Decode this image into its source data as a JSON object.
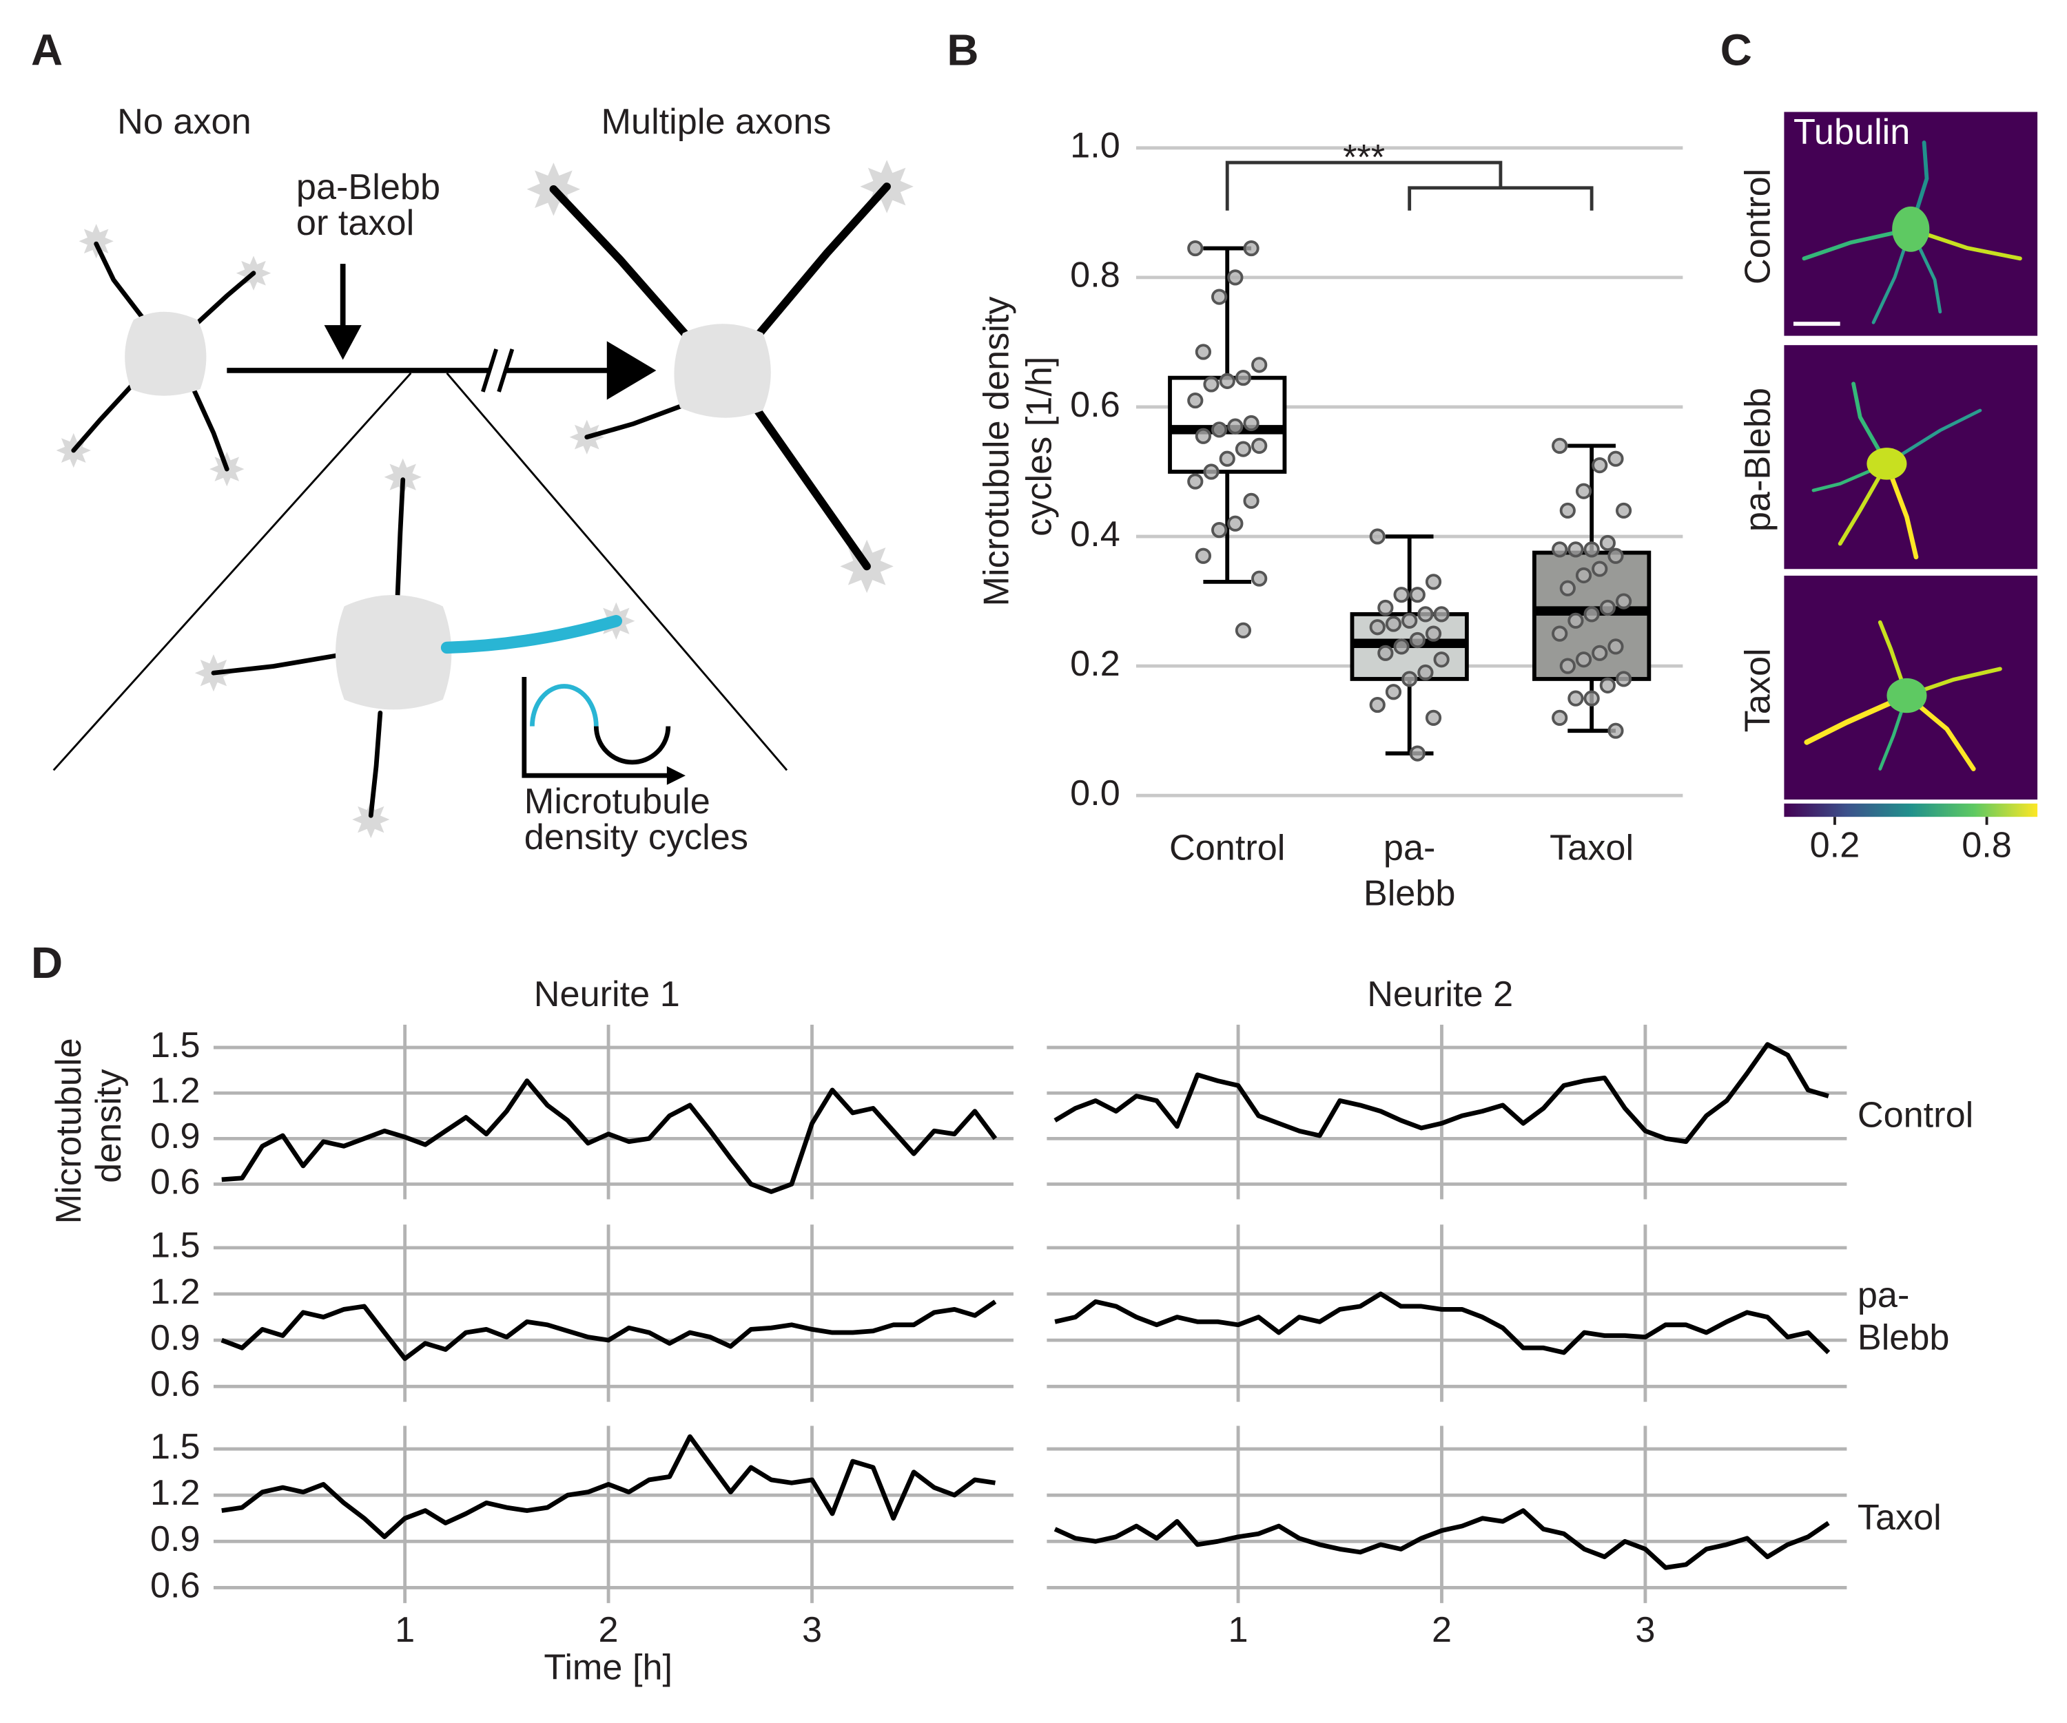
{
  "panels": [
    "A",
    "B",
    "C",
    "D"
  ],
  "diagram": {
    "left_label": "No axon",
    "right_label": "Multiple axons",
    "treatment": "pa-Blebb or taxol",
    "inset_label": "Microtubule density cycles"
  },
  "images": {
    "title": "Tubulin",
    "rows": [
      "Control",
      "pa-Blebb",
      "Taxol"
    ],
    "colorbar": {
      "clim": [
        0,
        1
      ],
      "ticks": [
        0.2,
        0.8
      ]
    }
  },
  "chart_data": [
    {
      "type": "box",
      "ylabel": "Microtubule density cycles [1/h]",
      "categories": [
        "Control",
        "pa-Blebb",
        "Taxol"
      ],
      "boxes": [
        {
          "whislo": 0.33,
          "q1": 0.5,
          "med": 0.565,
          "q3": 0.645,
          "whishi": 0.845,
          "color": "#ffffff",
          "points": [
            0.845,
            0.845,
            0.8,
            0.77,
            0.685,
            0.665,
            0.645,
            0.64,
            0.635,
            0.61,
            0.575,
            0.57,
            0.565,
            0.555,
            0.54,
            0.535,
            0.52,
            0.5,
            0.485,
            0.455,
            0.42,
            0.41,
            0.37,
            0.335,
            0.255
          ]
        },
        {
          "whislo": 0.065,
          "q1": 0.18,
          "med": 0.235,
          "q3": 0.28,
          "whishi": 0.4,
          "color": "#cdd1cf",
          "points": [
            0.4,
            0.33,
            0.31,
            0.31,
            0.29,
            0.28,
            0.28,
            0.27,
            0.265,
            0.26,
            0.25,
            0.24,
            0.23,
            0.22,
            0.21,
            0.19,
            0.18,
            0.16,
            0.14,
            0.12,
            0.065
          ]
        },
        {
          "whislo": 0.1,
          "q1": 0.18,
          "med": 0.285,
          "q3": 0.375,
          "whishi": 0.54,
          "color": "#999a97",
          "points": [
            0.54,
            0.52,
            0.51,
            0.47,
            0.44,
            0.44,
            0.39,
            0.38,
            0.38,
            0.38,
            0.37,
            0.35,
            0.34,
            0.32,
            0.3,
            0.29,
            0.28,
            0.27,
            0.25,
            0.23,
            0.22,
            0.21,
            0.2,
            0.18,
            0.17,
            0.15,
            0.15,
            0.12,
            0.1
          ]
        }
      ],
      "ylim": [
        -0.01,
        1.05
      ],
      "yticks": [
        {
          "value": 0,
          "label": "0.0"
        },
        0.2,
        0.4,
        0.6,
        0.8,
        {
          "value": 1,
          "label": "1.0"
        }
      ],
      "grid": true,
      "annotation": "***"
    },
    {
      "type": "line",
      "title": "Neurite 1",
      "ylabel": "Microtubule density",
      "color": "#000000",
      "x": [
        0.1,
        0.2,
        0.3,
        0.4,
        0.5,
        0.6,
        0.7,
        0.8,
        0.9,
        1,
        1.1,
        1.2,
        1.3,
        1.4,
        1.5,
        1.6,
        1.7,
        1.8,
        1.9,
        2,
        2.1,
        2.2,
        2.3,
        2.4,
        2.5,
        2.6,
        2.7,
        2.8,
        2.9,
        3,
        3.1,
        3.2,
        3.3,
        3.4,
        3.5,
        3.6,
        3.7,
        3.8,
        3.9
      ],
      "values": [
        0.63,
        0.64,
        0.85,
        0.92,
        0.72,
        0.88,
        0.85,
        0.9,
        0.95,
        0.91,
        0.86,
        0.95,
        1.04,
        0.93,
        1.08,
        1.28,
        1.12,
        1.02,
        0.87,
        0.93,
        0.88,
        0.9,
        1.05,
        1.12,
        0.95,
        0.77,
        0.6,
        0.55,
        0.6,
        1.0,
        1.22,
        1.07,
        1.1,
        0.95,
        0.8,
        0.95,
        0.93,
        1.08,
        0.9
      ],
      "xlim": [
        0.06,
        3.99
      ],
      "ylim": [
        0.5,
        1.65
      ],
      "xticks": [
        1,
        2,
        3
      ],
      "yticks": [
        0.6,
        0.9,
        1.2,
        1.5
      ],
      "grid": true,
      "xtick_labels": false,
      "ytick_labels": true
    },
    {
      "type": "line",
      "title": "Neurite 2",
      "row_label": "Control",
      "color": "#000000",
      "x": [
        0.1,
        0.2,
        0.3,
        0.4,
        0.5,
        0.6,
        0.7,
        0.8,
        0.9,
        1,
        1.1,
        1.2,
        1.3,
        1.4,
        1.5,
        1.6,
        1.7,
        1.8,
        1.9,
        2,
        2.1,
        2.2,
        2.3,
        2.4,
        2.5,
        2.6,
        2.7,
        2.8,
        2.9,
        3,
        3.1,
        3.2,
        3.3,
        3.4,
        3.5,
        3.6,
        3.7,
        3.8,
        3.9
      ],
      "values": [
        1.02,
        1.1,
        1.15,
        1.08,
        1.18,
        1.15,
        0.98,
        1.32,
        1.28,
        1.25,
        1.05,
        1.0,
        0.95,
        0.92,
        1.15,
        1.12,
        1.08,
        1.02,
        0.97,
        1.0,
        1.05,
        1.08,
        1.12,
        1.0,
        1.1,
        1.25,
        1.28,
        1.3,
        1.1,
        0.95,
        0.9,
        0.88,
        1.05,
        1.15,
        1.33,
        1.52,
        1.45,
        1.22,
        1.18
      ],
      "xlim": [
        0.06,
        3.99
      ],
      "ylim": [
        0.5,
        1.65
      ],
      "xticks": [
        1,
        2,
        3
      ],
      "yticks": [
        0.6,
        0.9,
        1.2,
        1.5
      ],
      "grid": true,
      "xtick_labels": false,
      "ytick_labels": false
    },
    {
      "type": "line",
      "color": "#000000",
      "x": [
        0.1,
        0.2,
        0.3,
        0.4,
        0.5,
        0.6,
        0.7,
        0.8,
        0.9,
        1,
        1.1,
        1.2,
        1.3,
        1.4,
        1.5,
        1.6,
        1.7,
        1.8,
        1.9,
        2,
        2.1,
        2.2,
        2.3,
        2.4,
        2.5,
        2.6,
        2.7,
        2.8,
        2.9,
        3,
        3.1,
        3.2,
        3.3,
        3.4,
        3.5,
        3.6,
        3.7,
        3.8,
        3.9
      ],
      "values": [
        0.9,
        0.85,
        0.97,
        0.93,
        1.08,
        1.05,
        1.1,
        1.12,
        0.95,
        0.78,
        0.88,
        0.84,
        0.95,
        0.97,
        0.92,
        1.02,
        1.0,
        0.96,
        0.92,
        0.9,
        0.98,
        0.95,
        0.88,
        0.95,
        0.92,
        0.86,
        0.97,
        0.98,
        1.0,
        0.97,
        0.95,
        0.95,
        0.96,
        1.0,
        1.0,
        1.08,
        1.1,
        1.06,
        1.15
      ],
      "xlim": [
        0.06,
        3.99
      ],
      "ylim": [
        0.5,
        1.65
      ],
      "xticks": [
        1,
        2,
        3
      ],
      "yticks": [
        0.6,
        0.9,
        1.2,
        1.5
      ],
      "grid": true,
      "xtick_labels": false,
      "ytick_labels": true
    },
    {
      "type": "line",
      "row_label": "pa-Blebb",
      "color": "#000000",
      "x": [
        0.1,
        0.2,
        0.3,
        0.4,
        0.5,
        0.6,
        0.7,
        0.8,
        0.9,
        1,
        1.1,
        1.2,
        1.3,
        1.4,
        1.5,
        1.6,
        1.7,
        1.8,
        1.9,
        2,
        2.1,
        2.2,
        2.3,
        2.4,
        2.5,
        2.6,
        2.7,
        2.8,
        2.9,
        3,
        3.1,
        3.2,
        3.3,
        3.4,
        3.5,
        3.6,
        3.7,
        3.8,
        3.9
      ],
      "values": [
        1.02,
        1.05,
        1.15,
        1.12,
        1.05,
        1.0,
        1.05,
        1.02,
        1.02,
        1.0,
        1.05,
        0.95,
        1.05,
        1.02,
        1.1,
        1.12,
        1.2,
        1.12,
        1.12,
        1.1,
        1.1,
        1.05,
        0.98,
        0.85,
        0.85,
        0.82,
        0.95,
        0.93,
        0.93,
        0.92,
        1.0,
        1.0,
        0.95,
        1.02,
        1.08,
        1.05,
        0.92,
        0.95,
        0.82
      ],
      "xlim": [
        0.06,
        3.99
      ],
      "ylim": [
        0.5,
        1.65
      ],
      "xticks": [
        1,
        2,
        3
      ],
      "yticks": [
        0.6,
        0.9,
        1.2,
        1.5
      ],
      "grid": true,
      "xtick_labels": false,
      "ytick_labels": false
    },
    {
      "type": "line",
      "xlabel": "Time [h]",
      "color": "#000000",
      "x": [
        0.1,
        0.2,
        0.3,
        0.4,
        0.5,
        0.6,
        0.7,
        0.8,
        0.9,
        1,
        1.1,
        1.2,
        1.3,
        1.4,
        1.5,
        1.6,
        1.7,
        1.8,
        1.9,
        2,
        2.1,
        2.2,
        2.3,
        2.4,
        2.5,
        2.6,
        2.7,
        2.8,
        2.9,
        3,
        3.1,
        3.2,
        3.3,
        3.4,
        3.5,
        3.6,
        3.7,
        3.8,
        3.9
      ],
      "values": [
        1.1,
        1.12,
        1.22,
        1.25,
        1.22,
        1.27,
        1.15,
        1.05,
        0.93,
        1.05,
        1.1,
        1.02,
        1.08,
        1.15,
        1.12,
        1.1,
        1.12,
        1.2,
        1.22,
        1.27,
        1.22,
        1.3,
        1.32,
        1.58,
        1.4,
        1.22,
        1.38,
        1.3,
        1.28,
        1.3,
        1.08,
        1.42,
        1.38,
        1.05,
        1.35,
        1.25,
        1.2,
        1.3,
        1.28
      ],
      "xlim": [
        0.06,
        3.99
      ],
      "ylim": [
        0.5,
        1.65
      ],
      "xticks": [
        1,
        2,
        3
      ],
      "yticks": [
        0.6,
        0.9,
        1.2,
        1.5
      ],
      "grid": true,
      "xtick_labels": true,
      "ytick_labels": true
    },
    {
      "type": "line",
      "row_label": "Taxol",
      "color": "#000000",
      "x": [
        0.1,
        0.2,
        0.3,
        0.4,
        0.5,
        0.6,
        0.7,
        0.8,
        0.9,
        1,
        1.1,
        1.2,
        1.3,
        1.4,
        1.5,
        1.6,
        1.7,
        1.8,
        1.9,
        2,
        2.1,
        2.2,
        2.3,
        2.4,
        2.5,
        2.6,
        2.7,
        2.8,
        2.9,
        3,
        3.1,
        3.2,
        3.3,
        3.4,
        3.5,
        3.6,
        3.7,
        3.8,
        3.9
      ],
      "values": [
        0.98,
        0.92,
        0.9,
        0.93,
        1.0,
        0.92,
        1.03,
        0.88,
        0.9,
        0.93,
        0.95,
        1.0,
        0.92,
        0.88,
        0.85,
        0.83,
        0.88,
        0.85,
        0.92,
        0.97,
        1.0,
        1.05,
        1.03,
        1.1,
        0.98,
        0.95,
        0.85,
        0.8,
        0.9,
        0.85,
        0.73,
        0.75,
        0.85,
        0.88,
        0.92,
        0.8,
        0.88,
        0.93,
        1.02
      ],
      "xlim": [
        0.06,
        3.99
      ],
      "ylim": [
        0.5,
        1.65
      ],
      "xticks": [
        1,
        2,
        3
      ],
      "yticks": [
        0.6,
        0.9,
        1.2,
        1.5
      ],
      "grid": true,
      "xtick_labels": true,
      "ytick_labels": false
    }
  ]
}
